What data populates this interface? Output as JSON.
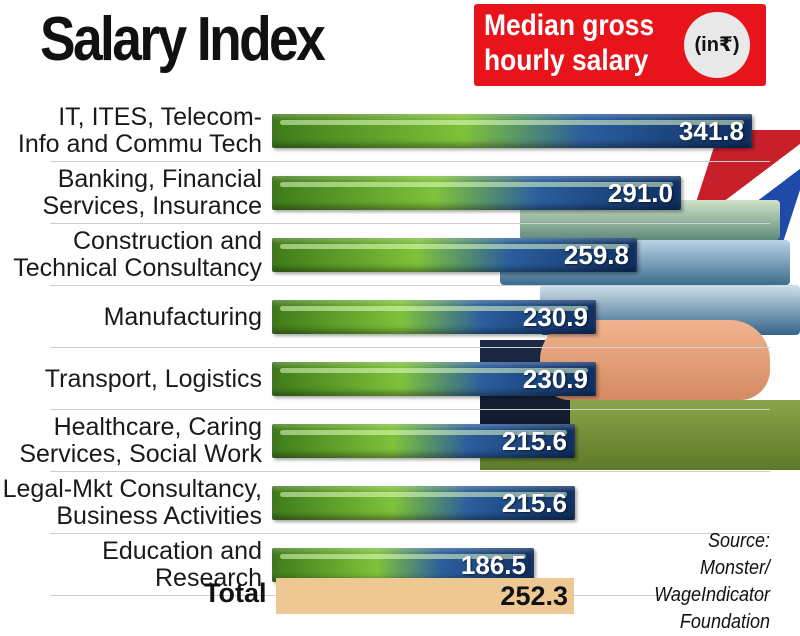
{
  "header": {
    "title": "Salary Index",
    "badge_title_line1": "Median gross",
    "badge_title_line2": "hourly salary",
    "badge_unit": "(in₹)"
  },
  "chart_data": {
    "type": "bar",
    "orientation": "horizontal",
    "title": "Salary Index",
    "subtitle": "Median gross hourly salary (in₹)",
    "categories": [
      "IT, ITES, Telecom-\nInfo and Commu Tech",
      "Banking, Financial\nServices, Insurance",
      "Construction and\nTechnical Consultancy",
      "Manufacturing",
      "Transport, Logistics",
      "Healthcare, Caring\nServices, Social Work",
      "Legal-Mkt Consultancy,\nBusiness Activities",
      "Education and Research"
    ],
    "values": [
      341.8,
      291.0,
      259.8,
      230.9,
      230.9,
      215.6,
      215.6,
      186.5
    ],
    "value_labels": [
      "341.8",
      "291.0",
      "259.8",
      "230.9",
      "230.9",
      "215.6",
      "215.6",
      "186.5"
    ],
    "total": {
      "label": "Total",
      "value": 252.3,
      "value_label": "252.3"
    },
    "xlim": [
      0,
      341.8
    ],
    "grid": false,
    "legend": "none"
  },
  "source": "Source: Monster/\nWageIndicator\nFoundation",
  "colors": {
    "badge": "#e8141c",
    "bar_green": "#7fc23a",
    "bar_blue": "#0f2f62",
    "total_bar": "#edc893"
  }
}
